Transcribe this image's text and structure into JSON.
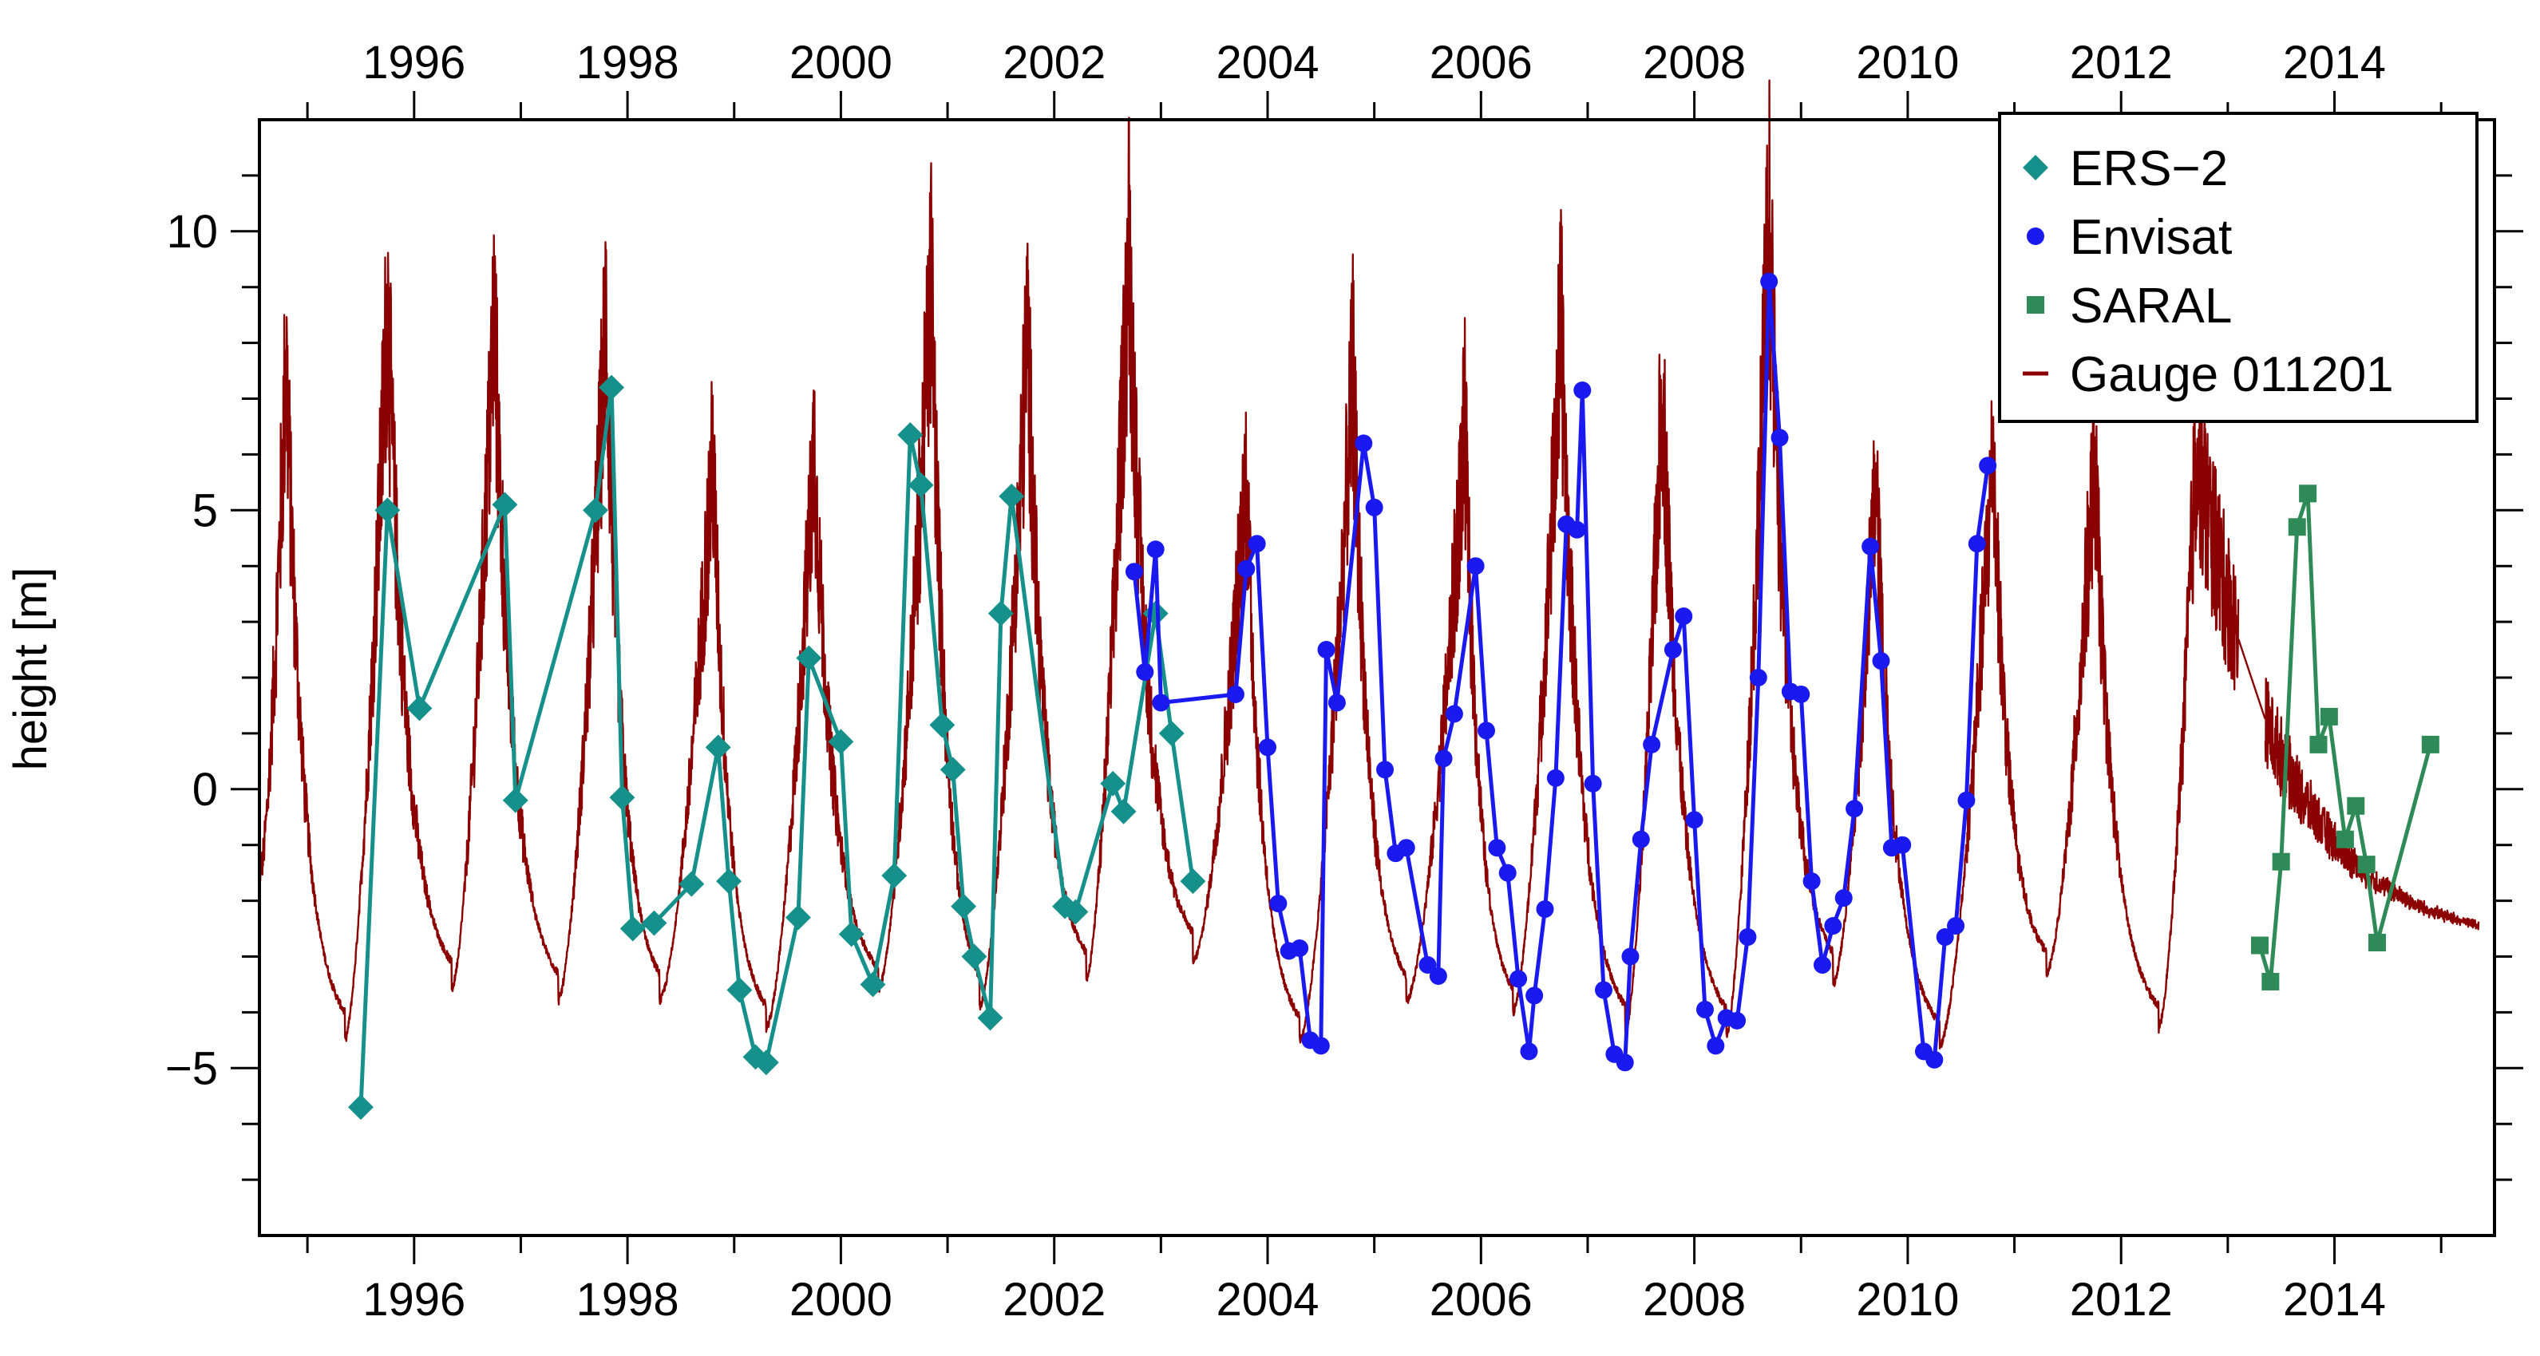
{
  "chart_data": {
    "type": "line",
    "title": "",
    "xlabel": "",
    "ylabel": "height [m]",
    "xlim": [
      1994.55,
      2015.5
    ],
    "ylim": [
      -8.0,
      12.0
    ],
    "x_ticks": [
      1996,
      1998,
      2000,
      2002,
      2004,
      2006,
      2008,
      2010,
      2012,
      2014
    ],
    "x_tick_labels": [
      "1996",
      "1998",
      "2000",
      "2002",
      "2004",
      "2006",
      "2008",
      "2010",
      "2012",
      "2014"
    ],
    "y_ticks": [
      -5,
      0,
      5,
      10
    ],
    "y_tick_labels": [
      "−5",
      "0",
      "5",
      "10"
    ],
    "grid": false,
    "legend_position": "top-right",
    "legend": [
      {
        "label": "ERS−2",
        "marker": "diamond",
        "color": "#15908A"
      },
      {
        "label": "Envisat",
        "marker": "circle",
        "color": "#1A1AF0"
      },
      {
        "label": "SARAL",
        "marker": "square",
        "color": "#2E8B57"
      },
      {
        "label": "Gauge 011201",
        "marker": "line",
        "color": "#8B0000"
      }
    ],
    "series": [
      {
        "name": "ERS−2",
        "color": "#15908A",
        "marker": "diamond",
        "points": [
          [
            1995.5,
            -5.7
          ],
          [
            1995.75,
            5.0
          ],
          [
            1996.05,
            1.45
          ],
          [
            1996.85,
            5.1
          ],
          [
            1996.95,
            -0.2
          ],
          [
            1997.7,
            5.0
          ],
          [
            1997.85,
            7.2
          ],
          [
            1997.95,
            -0.15
          ],
          [
            1998.05,
            -2.5
          ],
          [
            1998.25,
            -2.4
          ],
          [
            1998.6,
            -1.7
          ],
          [
            1998.85,
            0.75
          ],
          [
            1998.95,
            -1.65
          ],
          [
            1999.05,
            -3.6
          ],
          [
            1999.2,
            -4.8
          ],
          [
            1999.3,
            -4.9
          ],
          [
            1999.6,
            -2.3
          ],
          [
            1999.7,
            2.35
          ],
          [
            2000.0,
            0.85
          ],
          [
            2000.1,
            -2.6
          ],
          [
            2000.3,
            -3.5
          ],
          [
            2000.5,
            -1.55
          ],
          [
            2000.65,
            6.35
          ],
          [
            2000.75,
            5.45
          ],
          [
            2000.95,
            1.15
          ],
          [
            2001.05,
            0.35
          ],
          [
            2001.15,
            -2.1
          ],
          [
            2001.25,
            -3.0
          ],
          [
            2001.4,
            -4.1
          ],
          [
            2001.5,
            3.15
          ],
          [
            2001.6,
            5.25
          ],
          [
            2002.1,
            -2.1
          ],
          [
            2002.2,
            -2.2
          ],
          [
            2002.55,
            0.1
          ],
          [
            2002.65,
            -0.4
          ],
          [
            2002.95,
            3.15
          ],
          [
            2003.1,
            1.0
          ],
          [
            2003.3,
            -1.65
          ]
        ]
      },
      {
        "name": "Envisat",
        "color": "#1A1AF0",
        "marker": "circle",
        "points": [
          [
            2002.75,
            3.9
          ],
          [
            2002.85,
            2.1
          ],
          [
            2002.95,
            4.3
          ],
          [
            2003.0,
            1.55
          ],
          [
            2003.7,
            1.7
          ],
          [
            2003.8,
            3.95
          ],
          [
            2003.9,
            4.4
          ],
          [
            2004.0,
            0.75
          ],
          [
            2004.1,
            -2.05
          ],
          [
            2004.2,
            -2.9
          ],
          [
            2004.3,
            -2.85
          ],
          [
            2004.4,
            -4.5
          ],
          [
            2004.5,
            -4.6
          ],
          [
            2004.55,
            2.5
          ],
          [
            2004.65,
            1.55
          ],
          [
            2004.9,
            6.2
          ],
          [
            2005.0,
            5.05
          ],
          [
            2005.1,
            0.35
          ],
          [
            2005.2,
            -1.15
          ],
          [
            2005.3,
            -1.05
          ],
          [
            2005.5,
            -3.15
          ],
          [
            2005.6,
            -3.35
          ],
          [
            2005.65,
            0.55
          ],
          [
            2005.75,
            1.35
          ],
          [
            2005.95,
            4.0
          ],
          [
            2006.05,
            1.05
          ],
          [
            2006.15,
            -1.05
          ],
          [
            2006.25,
            -1.5
          ],
          [
            2006.35,
            -3.4
          ],
          [
            2006.45,
            -4.7
          ],
          [
            2006.5,
            -3.7
          ],
          [
            2006.6,
            -2.15
          ],
          [
            2006.7,
            0.2
          ],
          [
            2006.8,
            4.75
          ],
          [
            2006.9,
            4.65
          ],
          [
            2006.95,
            7.15
          ],
          [
            2007.05,
            0.1
          ],
          [
            2007.15,
            -3.6
          ],
          [
            2007.25,
            -4.75
          ],
          [
            2007.35,
            -4.9
          ],
          [
            2007.4,
            -3.0
          ],
          [
            2007.5,
            -0.9
          ],
          [
            2007.6,
            0.8
          ],
          [
            2007.8,
            2.5
          ],
          [
            2007.9,
            3.1
          ],
          [
            2008.0,
            -0.55
          ],
          [
            2008.1,
            -3.95
          ],
          [
            2008.2,
            -4.6
          ],
          [
            2008.3,
            -4.1
          ],
          [
            2008.4,
            -4.15
          ],
          [
            2008.5,
            -2.65
          ],
          [
            2008.6,
            2.0
          ],
          [
            2008.7,
            9.1
          ],
          [
            2008.8,
            6.3
          ],
          [
            2008.9,
            1.75
          ],
          [
            2009.0,
            1.7
          ],
          [
            2009.1,
            -1.65
          ],
          [
            2009.2,
            -3.15
          ],
          [
            2009.3,
            -2.45
          ],
          [
            2009.4,
            -1.95
          ],
          [
            2009.5,
            -0.35
          ],
          [
            2009.65,
            4.35
          ],
          [
            2009.75,
            2.3
          ],
          [
            2009.85,
            -1.05
          ],
          [
            2009.95,
            -1.0
          ],
          [
            2010.15,
            -4.7
          ],
          [
            2010.25,
            -4.85
          ],
          [
            2010.35,
            -2.65
          ],
          [
            2010.45,
            -2.45
          ],
          [
            2010.55,
            -0.2
          ],
          [
            2010.65,
            4.4
          ],
          [
            2010.75,
            5.8
          ]
        ]
      },
      {
        "name": "SARAL",
        "color": "#2E8B57",
        "marker": "square",
        "points": [
          [
            2013.3,
            -2.8
          ],
          [
            2013.4,
            -3.45
          ],
          [
            2013.5,
            -1.3
          ],
          [
            2013.65,
            4.7
          ],
          [
            2013.75,
            5.3
          ],
          [
            2013.85,
            0.8
          ],
          [
            2013.95,
            1.3
          ],
          [
            2014.1,
            -0.9
          ],
          [
            2014.2,
            -0.3
          ],
          [
            2014.3,
            -1.35
          ],
          [
            2014.4,
            -2.75
          ],
          [
            2014.9,
            0.8
          ]
        ]
      },
      {
        "name": "Gauge 011201",
        "color": "#8B0000",
        "marker": "line",
        "annual_minima": [
          [
            1994.55,
            -1.6
          ],
          [
            1995.35,
            -4.5
          ],
          [
            1996.35,
            -3.6
          ],
          [
            1997.35,
            -3.8
          ],
          [
            1998.3,
            -3.8
          ],
          [
            1999.3,
            -4.3
          ],
          [
            2000.35,
            -3.6
          ],
          [
            2001.3,
            -3.9
          ],
          [
            2002.3,
            -3.4
          ],
          [
            2003.3,
            -3.1
          ],
          [
            2004.3,
            -4.5
          ],
          [
            2005.3,
            -3.8
          ],
          [
            2006.3,
            -4.0
          ],
          [
            2007.35,
            -4.4
          ],
          [
            2008.3,
            -4.4
          ],
          [
            2009.3,
            -3.5
          ],
          [
            2010.3,
            -4.6
          ],
          [
            2011.3,
            -3.3
          ],
          [
            2012.35,
            -4.3
          ],
          [
            2015.35,
            -2.8
          ]
        ],
        "annual_maxima": [
          [
            1994.8,
            7.8
          ],
          [
            1995.75,
            8.8
          ],
          [
            1996.75,
            8.5
          ],
          [
            1997.8,
            8.5
          ],
          [
            1998.8,
            6.0
          ],
          [
            1999.75,
            6.2
          ],
          [
            2000.85,
            9.2
          ],
          [
            2001.75,
            8.2
          ],
          [
            2002.7,
            9.8
          ],
          [
            2003.8,
            5.7
          ],
          [
            2004.8,
            7.5
          ],
          [
            2005.85,
            6.5
          ],
          [
            2006.75,
            8.4
          ],
          [
            2007.7,
            7.4
          ],
          [
            2008.7,
            10.4
          ],
          [
            2009.7,
            5.6
          ],
          [
            2010.8,
            6.1
          ],
          [
            2011.75,
            6.0
          ],
          [
            2012.7,
            6.1
          ],
          [
            2013.75,
            6.1
          ],
          [
            2014.75,
            6.0
          ]
        ],
        "gap": [
          2013.1,
          2013.35
        ]
      }
    ]
  }
}
